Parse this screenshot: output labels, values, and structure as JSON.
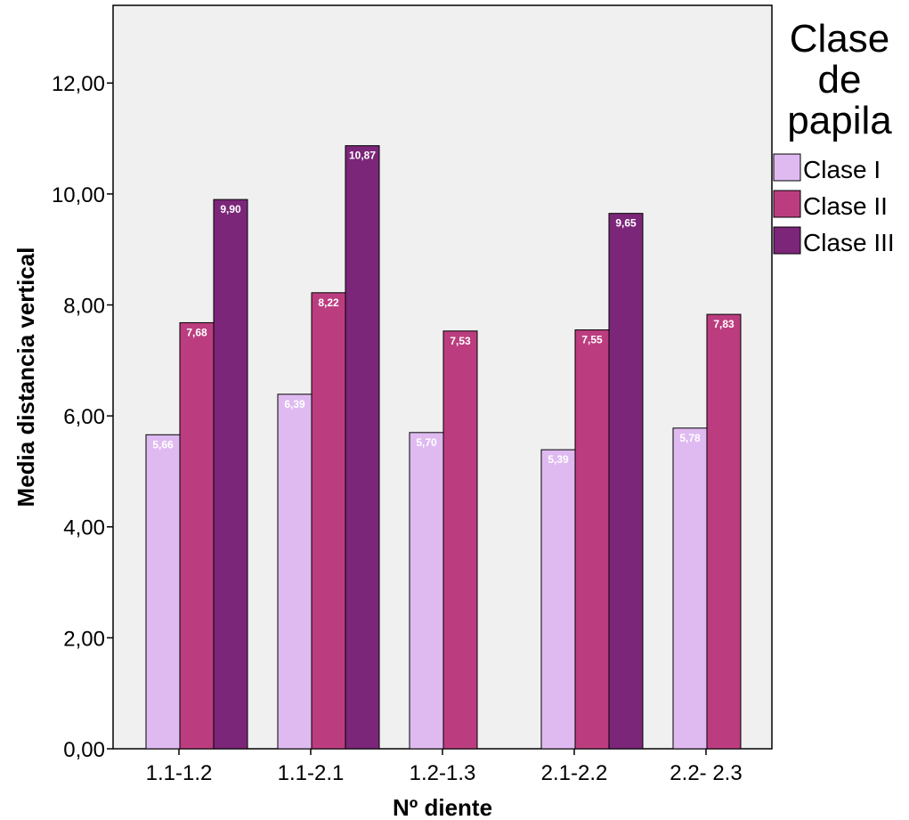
{
  "chart_data": {
    "type": "bar",
    "categories": [
      "1.1-1.2",
      "1.1-2.1",
      "1.2-1.3",
      "2.1-2.2",
      "2.2- 2.3"
    ],
    "series": [
      {
        "name": "Clase I",
        "color": "#dfbaf1",
        "values": [
          5.66,
          6.39,
          5.7,
          5.39,
          5.78
        ],
        "labels": [
          "5,66",
          "6,39",
          "5,70",
          "5,39",
          "5,78"
        ]
      },
      {
        "name": "Clase II",
        "color": "#bb3d7f",
        "values": [
          7.68,
          8.22,
          7.53,
          7.55,
          7.83
        ],
        "labels": [
          "7,68",
          "8,22",
          "7,53",
          "7,55",
          "7,83"
        ]
      },
      {
        "name": "Clase III",
        "color": "#7b2679",
        "values": [
          9.9,
          10.87,
          null,
          9.65,
          null
        ],
        "labels": [
          "9,90",
          "10,87",
          "",
          "9,65",
          ""
        ]
      }
    ],
    "xlabel": "Nº diente",
    "ylabel": "Media distancia vertical",
    "ylim": [
      0,
      13.4
    ],
    "yticks": [
      0,
      2,
      4,
      6,
      8,
      10,
      12
    ],
    "ytick_labels": [
      "0,00",
      "2,00",
      "4,00",
      "6,00",
      "8,00",
      "10,00",
      "12,00"
    ],
    "legend": {
      "title_lines": [
        "Clase",
        "de",
        "papila"
      ],
      "position": "right"
    },
    "plot_background": "#f0f0f0",
    "grid": false
  }
}
